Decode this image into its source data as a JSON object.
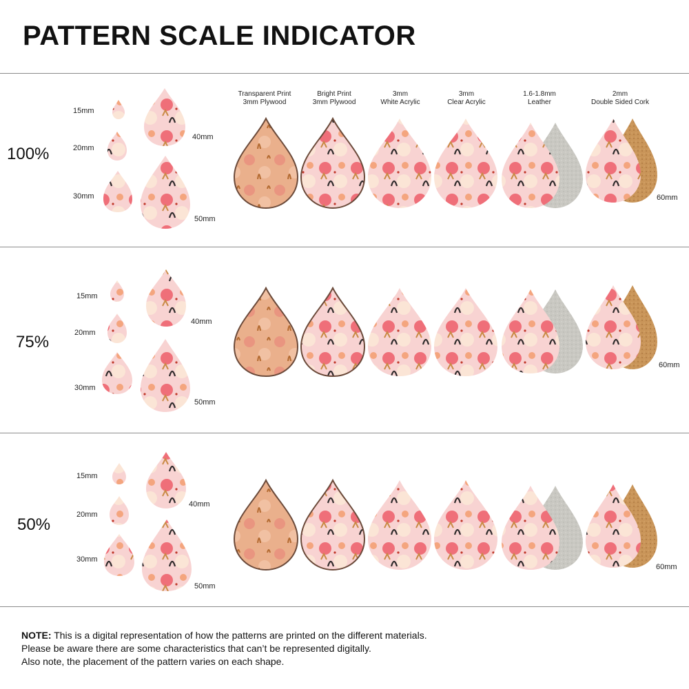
{
  "title": "PATTERN SCALE INDICATOR",
  "materials": [
    "Transparent Print\n3mm Plywood",
    "Bright Print\n3mm Plywood",
    "3mm\nWhite Acrylic",
    "3mm\nClear Acrylic",
    "1.6-1.8mm\nLeather",
    "2mm\nDouble Sided Cork"
  ],
  "sizes": {
    "s15": "15mm",
    "s20": "20mm",
    "s30": "30mm",
    "s40": "40mm",
    "s50": "50mm",
    "s60": "60mm"
  },
  "scales": [
    {
      "label": "100%"
    },
    {
      "label": "75%"
    },
    {
      "label": "50%"
    }
  ],
  "note": {
    "lead": "NOTE:",
    "line1": " This is a digital representation of how the patterns are printed on the different materials.",
    "line2": "Please be aware there are some characteristics that can’t be represented digitally.",
    "line3": "Also note, the placement of the pattern varies on each shape."
  },
  "colors": {
    "plywood_edge": "#6b4a3a",
    "wood_base": "#e9b58f",
    "pink_base": "#f6c7c4",
    "coral": "#ef7d7d",
    "dark_leaf": "#2f2b2b",
    "ochre": "#c98a45",
    "leather": "#c9c8c2",
    "cork": "#c9955a"
  }
}
